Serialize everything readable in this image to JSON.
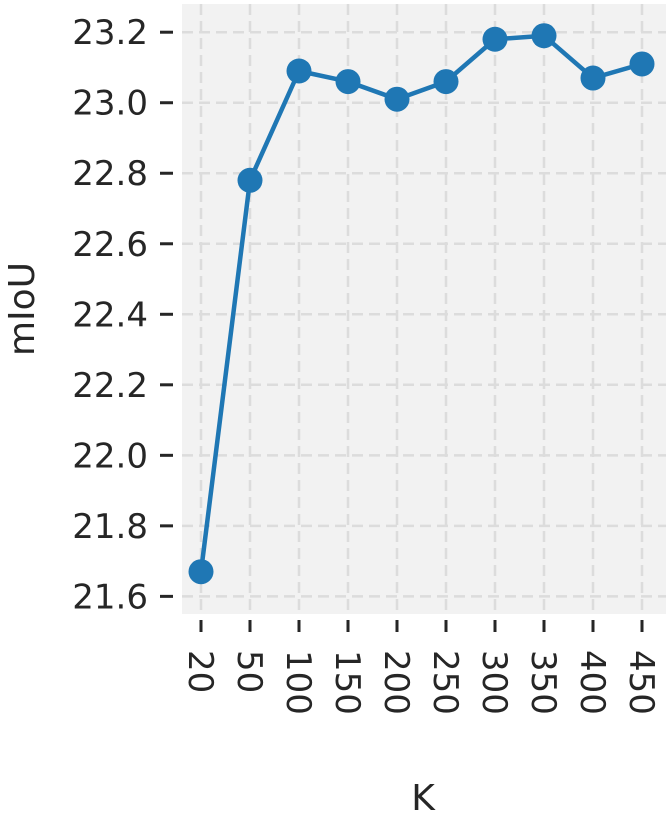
{
  "chart_data": {
    "type": "line",
    "title": "",
    "xlabel": "K",
    "ylabel": "mIoU",
    "x": [
      "20",
      "50",
      "100",
      "150",
      "200",
      "250",
      "300",
      "350",
      "400",
      "450"
    ],
    "series": [
      {
        "values": [
          21.67,
          22.78,
          23.09,
          23.06,
          23.01,
          23.06,
          23.18,
          23.19,
          23.07,
          23.11
        ]
      }
    ],
    "yticks": [
      "21.6",
      "21.8",
      "22.0",
      "22.2",
      "22.4",
      "22.6",
      "22.8",
      "23.0",
      "23.2"
    ],
    "ylim": [
      21.55,
      23.28
    ],
    "grid": true,
    "x_tick_rotation": "vertical",
    "colors": {
      "line": "#1f77b4",
      "plot_background": "#f2f2f2",
      "grid": "#dcdcdc",
      "text": "#262626"
    }
  }
}
